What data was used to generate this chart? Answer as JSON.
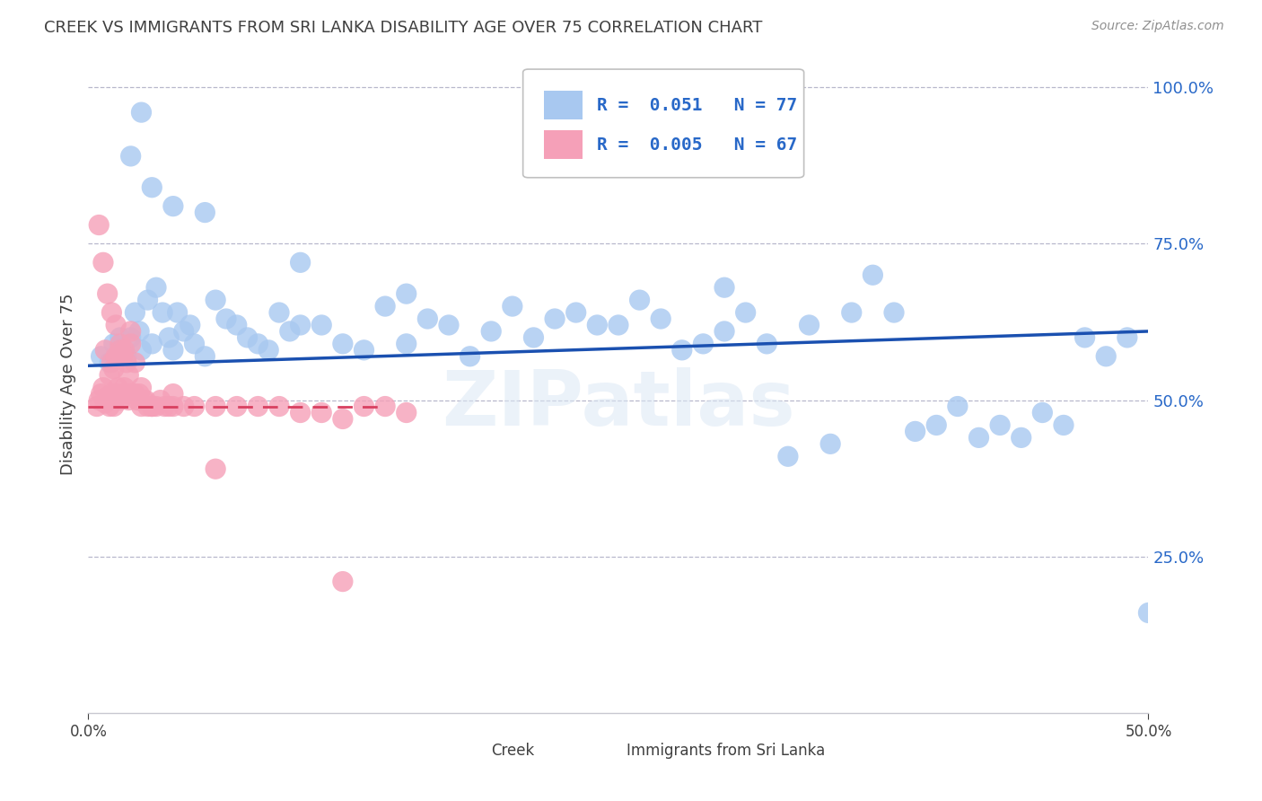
{
  "title": "CREEK VS IMMIGRANTS FROM SRI LANKA DISABILITY AGE OVER 75 CORRELATION CHART",
  "source": "Source: ZipAtlas.com",
  "ylabel": "Disability Age Over 75",
  "xlim": [
    0.0,
    0.5
  ],
  "ylim": [
    0.0,
    1.05
  ],
  "xtick_vals": [
    0.0,
    0.5
  ],
  "xticklabels": [
    "0.0%",
    "50.0%"
  ],
  "ytick_vals": [
    0.25,
    0.5,
    0.75,
    1.0
  ],
  "yticklabels": [
    "25.0%",
    "50.0%",
    "75.0%",
    "100.0%"
  ],
  "watermark": "ZIPatlas",
  "legend_creek_label": "R =  0.051   N = 77",
  "legend_sri_label": "R =  0.005   N = 67",
  "bottom_legend_creek": "Creek",
  "bottom_legend_sri": "Immigrants from Sri Lanka",
  "creek_color": "#a8c8f0",
  "srilanka_color": "#f5a0b8",
  "creek_line_color": "#1a50b0",
  "srilanka_line_color": "#d84060",
  "background_color": "#ffffff",
  "grid_color": "#b8b8cc",
  "title_color": "#404040",
  "axis_color": "#2868c8",
  "creek_x": [
    0.006,
    0.01,
    0.012,
    0.015,
    0.018,
    0.02,
    0.022,
    0.024,
    0.025,
    0.028,
    0.03,
    0.032,
    0.035,
    0.038,
    0.04,
    0.042,
    0.045,
    0.048,
    0.05,
    0.055,
    0.06,
    0.065,
    0.07,
    0.075,
    0.08,
    0.085,
    0.09,
    0.095,
    0.1,
    0.11,
    0.12,
    0.13,
    0.14,
    0.15,
    0.16,
    0.17,
    0.18,
    0.19,
    0.21,
    0.22,
    0.23,
    0.24,
    0.25,
    0.26,
    0.27,
    0.28,
    0.29,
    0.3,
    0.31,
    0.32,
    0.33,
    0.34,
    0.35,
    0.36,
    0.37,
    0.38,
    0.39,
    0.4,
    0.41,
    0.42,
    0.43,
    0.44,
    0.45,
    0.46,
    0.47,
    0.48,
    0.49,
    0.5,
    0.02,
    0.025,
    0.03,
    0.04,
    0.055,
    0.1,
    0.15,
    0.2,
    0.3
  ],
  "creek_y": [
    0.57,
    0.56,
    0.59,
    0.6,
    0.57,
    0.6,
    0.64,
    0.61,
    0.58,
    0.66,
    0.59,
    0.68,
    0.64,
    0.6,
    0.58,
    0.64,
    0.61,
    0.62,
    0.59,
    0.57,
    0.66,
    0.63,
    0.62,
    0.6,
    0.59,
    0.58,
    0.64,
    0.61,
    0.62,
    0.62,
    0.59,
    0.58,
    0.65,
    0.59,
    0.63,
    0.62,
    0.57,
    0.61,
    0.6,
    0.63,
    0.64,
    0.62,
    0.62,
    0.66,
    0.63,
    0.58,
    0.59,
    0.68,
    0.64,
    0.59,
    0.41,
    0.62,
    0.43,
    0.64,
    0.7,
    0.64,
    0.45,
    0.46,
    0.49,
    0.44,
    0.46,
    0.44,
    0.48,
    0.46,
    0.6,
    0.57,
    0.6,
    0.16,
    0.89,
    0.96,
    0.84,
    0.81,
    0.8,
    0.72,
    0.67,
    0.65,
    0.61
  ],
  "srilanka_x": [
    0.004,
    0.005,
    0.006,
    0.007,
    0.008,
    0.008,
    0.009,
    0.01,
    0.01,
    0.011,
    0.011,
    0.012,
    0.012,
    0.013,
    0.013,
    0.014,
    0.015,
    0.015,
    0.016,
    0.016,
    0.017,
    0.017,
    0.018,
    0.018,
    0.019,
    0.019,
    0.02,
    0.02,
    0.021,
    0.022,
    0.022,
    0.023,
    0.024,
    0.025,
    0.026,
    0.027,
    0.028,
    0.03,
    0.032,
    0.034,
    0.036,
    0.038,
    0.04,
    0.045,
    0.05,
    0.06,
    0.07,
    0.08,
    0.09,
    0.1,
    0.11,
    0.12,
    0.13,
    0.14,
    0.15,
    0.005,
    0.007,
    0.009,
    0.011,
    0.013,
    0.015,
    0.02,
    0.025,
    0.03,
    0.04,
    0.06,
    0.12
  ],
  "srilanka_y": [
    0.49,
    0.5,
    0.51,
    0.52,
    0.495,
    0.58,
    0.505,
    0.49,
    0.54,
    0.51,
    0.56,
    0.49,
    0.55,
    0.51,
    0.57,
    0.52,
    0.5,
    0.58,
    0.51,
    0.57,
    0.58,
    0.52,
    0.51,
    0.56,
    0.5,
    0.54,
    0.51,
    0.59,
    0.51,
    0.51,
    0.56,
    0.5,
    0.51,
    0.49,
    0.5,
    0.5,
    0.49,
    0.49,
    0.49,
    0.5,
    0.49,
    0.49,
    0.49,
    0.49,
    0.49,
    0.49,
    0.49,
    0.49,
    0.49,
    0.48,
    0.48,
    0.47,
    0.49,
    0.49,
    0.48,
    0.78,
    0.72,
    0.67,
    0.64,
    0.62,
    0.59,
    0.61,
    0.52,
    0.49,
    0.51,
    0.39,
    0.21
  ],
  "creek_line_x0": 0.0,
  "creek_line_x1": 0.5,
  "creek_line_y0": 0.555,
  "creek_line_y1": 0.61,
  "sri_line_x0": 0.0,
  "sri_line_x1": 0.14,
  "sri_line_y0": 0.49,
  "sri_line_y1": 0.49
}
